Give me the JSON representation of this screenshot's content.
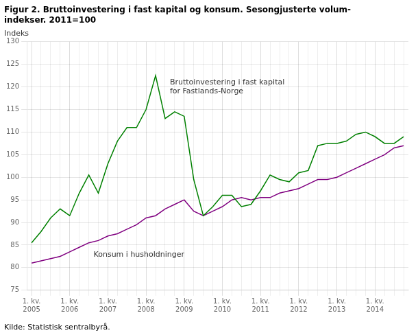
{
  "chart_data": {
    "type": "line",
    "title": "Figur 2. Bruttoinvestering i fast kapital og konsum. Sesongjusterte volum-\nindekser. 2011=100",
    "ylabel": "Indeks",
    "source": "Kilde: Statistisk sentralbyrå.",
    "categories": [
      "1. kv.\n2005",
      null,
      null,
      null,
      "1. kv.\n2006",
      null,
      null,
      null,
      "1. kv.\n2007",
      null,
      null,
      null,
      "1. kv.\n2008",
      null,
      null,
      null,
      "1. kv.\n2009",
      null,
      null,
      null,
      "1. kv.\n2010",
      null,
      null,
      null,
      "1. kv.\n2011",
      null,
      null,
      null,
      "1. kv.\n2012",
      null,
      null,
      null,
      "1. kv.\n2013",
      null,
      null,
      null,
      "1. kv.\n2014",
      null,
      null,
      null
    ],
    "series": [
      {
        "name": "Bruttoinvestering i fast kapital\nfor Fastlands-Norge",
        "color": "#008000",
        "values": [
          85.5,
          88.0,
          91.0,
          93.0,
          91.5,
          96.5,
          100.5,
          96.5,
          103.0,
          108.0,
          111.0,
          111.0,
          115.0,
          122.5,
          113.0,
          114.5,
          113.5,
          99.5,
          91.5,
          93.5,
          96.0,
          96.0,
          93.5,
          94.0,
          97.0,
          100.5,
          99.5,
          99.0,
          101.0,
          101.5,
          107.0,
          107.5,
          107.5,
          108.0,
          109.5,
          110.0,
          109.0,
          107.5,
          107.5,
          109.0
        ]
      },
      {
        "name": "Konsum i husholdninger",
        "color": "#800080",
        "values": [
          81.0,
          81.5,
          82.0,
          82.5,
          83.5,
          84.5,
          85.5,
          86.0,
          87.0,
          87.5,
          88.5,
          89.5,
          91.0,
          91.5,
          93.0,
          94.0,
          95.0,
          92.5,
          91.5,
          92.5,
          93.5,
          95.0,
          95.5,
          95.0,
          95.5,
          95.5,
          96.5,
          97.0,
          97.5,
          98.5,
          99.5,
          99.5,
          100.0,
          101.0,
          102.0,
          103.0,
          104.0,
          105.0,
          106.5,
          107.0
        ]
      }
    ],
    "ylim": [
      75,
      130
    ],
    "yticks": [
      75,
      80,
      85,
      90,
      95,
      100,
      105,
      110,
      115,
      120,
      125,
      130
    ],
    "grid": true
  }
}
